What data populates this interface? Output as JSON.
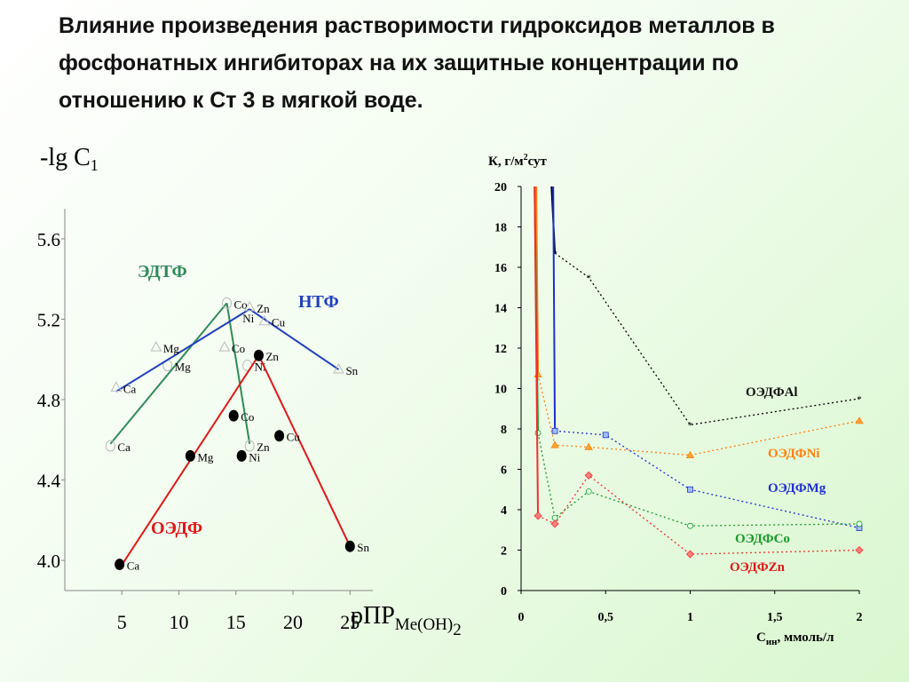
{
  "title": "Влияние произведения растворимости гидроксидов металлов в фосфонатных ингибиторах на их защитные концентрации по отношению к Ст 3 в мягкой воде.",
  "chart_data": [
    {
      "type": "scatter",
      "ylabel_main": "-lg C",
      "ylabel_sub": "1",
      "xlabel_main": "рПР",
      "xlabel_sub": "Me(OH)",
      "xlabel_sub2": "2",
      "xlim": [
        0,
        27
      ],
      "ylim": [
        3.85,
        5.75
      ],
      "x_ticks": [
        {
          "v": 5,
          "label": "5"
        },
        {
          "v": 10,
          "label": "10"
        },
        {
          "v": 15,
          "label": "15"
        },
        {
          "v": 20,
          "label": "20"
        },
        {
          "v": 25,
          "label": "25"
        }
      ],
      "y_ticks": [
        {
          "v": 4.0,
          "label": "4.0"
        },
        {
          "v": 4.4,
          "label": "4.4"
        },
        {
          "v": 4.8,
          "label": "4.8"
        },
        {
          "v": 5.2,
          "label": "5.2"
        },
        {
          "v": 5.6,
          "label": "5.6"
        }
      ],
      "series": [
        {
          "name": "ЭДТФ",
          "color": "#2e8b57",
          "marker": "open-circle",
          "points": [
            {
              "x": 4.0,
              "y": 4.57,
              "label": "Ca"
            },
            {
              "x": 9.0,
              "y": 4.97,
              "label": "Mg"
            },
            {
              "x": 14.2,
              "y": 5.28,
              "label": "Co"
            },
            {
              "x": 16.0,
              "y": 4.97,
              "label": "Ni"
            },
            {
              "x": 16.2,
              "y": 4.57,
              "label": "Zn"
            }
          ],
          "lines": [
            {
              "from": [
                4.0,
                4.58
              ],
              "to": [
                14.2,
                5.28
              ]
            },
            {
              "from": [
                14.2,
                5.28
              ],
              "to": [
                16.2,
                4.58
              ]
            }
          ]
        },
        {
          "name": "НТФ",
          "color": "#1f3fbf",
          "marker": "open-triangle",
          "points": [
            {
              "x": 4.5,
              "y": 4.86,
              "label": "Ca"
            },
            {
              "x": 8.0,
              "y": 5.06,
              "label": "Mg"
            },
            {
              "x": 14.0,
              "y": 5.06,
              "label": "Co"
            },
            {
              "x": 16.2,
              "y": 5.26,
              "label": "Zn"
            },
            {
              "x": 17.5,
              "y": 5.19,
              "label": "Cu"
            },
            {
              "x": 24.0,
              "y": 4.95,
              "label": "Sn"
            }
          ],
          "extra_labels": [
            {
              "x": 16.2,
              "y": 5.21,
              "label": "Ni"
            }
          ],
          "lines": [
            {
              "from": [
                4.5,
                4.84
              ],
              "to": [
                16.2,
                5.25
              ]
            },
            {
              "from": [
                16.2,
                5.25
              ],
              "to": [
                24.0,
                4.95
              ]
            }
          ]
        },
        {
          "name": "ОЭДФ",
          "color": "#e01818",
          "marker": "filled-circle",
          "points": [
            {
              "x": 4.8,
              "y": 3.98,
              "label": "Ca"
            },
            {
              "x": 11.0,
              "y": 4.52,
              "label": "Mg"
            },
            {
              "x": 14.8,
              "y": 4.72,
              "label": "Co"
            },
            {
              "x": 15.5,
              "y": 4.52,
              "label": "Ni"
            },
            {
              "x": 17.0,
              "y": 5.02,
              "label": "Zn"
            },
            {
              "x": 18.8,
              "y": 4.62,
              "label": "Cu"
            },
            {
              "x": 25.0,
              "y": 4.07,
              "label": "Sn"
            }
          ],
          "lines": [
            {
              "from": [
                4.8,
                3.96
              ],
              "to": [
                17.0,
                5.02
              ]
            },
            {
              "from": [
                17.0,
                5.02
              ],
              "to": [
                25.0,
                4.07
              ]
            }
          ]
        }
      ]
    },
    {
      "type": "line",
      "ylabel_main": "К, г/м",
      "ylabel_sup": "2",
      "ylabel_tail": "сут",
      "xlabel_main": "С",
      "xlabel_sub": "ин",
      "xlabel_tail": ", ммоль/л",
      "xlim": [
        0,
        2
      ],
      "ylim": [
        0,
        20
      ],
      "x_ticks": [
        {
          "v": 0,
          "label": "0"
        },
        {
          "v": 0.5,
          "label": "0,5"
        },
        {
          "v": 1,
          "label": "1"
        },
        {
          "v": 1.5,
          "label": "1,5"
        },
        {
          "v": 2,
          "label": "2"
        }
      ],
      "y_ticks": [
        {
          "v": 0,
          "label": "0"
        },
        {
          "v": 2,
          "label": "2"
        },
        {
          "v": 4,
          "label": "4"
        },
        {
          "v": 6,
          "label": "6"
        },
        {
          "v": 8,
          "label": "8"
        },
        {
          "v": 10,
          "label": "10"
        },
        {
          "v": 12,
          "label": "12"
        },
        {
          "v": 14,
          "label": "14"
        },
        {
          "v": 16,
          "label": "16"
        },
        {
          "v": 18,
          "label": "18"
        },
        {
          "v": 20,
          "label": "20"
        }
      ],
      "series": [
        {
          "name": "ОЭДФAl",
          "color": "#000000",
          "marker": "star",
          "start": [
            0.18,
            20
          ],
          "x": [
            0.2,
            0.4,
            1.0,
            2.0
          ],
          "y": [
            16.7,
            15.5,
            8.2,
            9.5
          ]
        },
        {
          "name": "ОЭДФNi",
          "color": "#ff7f0e",
          "marker": "triangle",
          "start": [
            0.09,
            20
          ],
          "x": [
            0.1,
            0.2,
            0.4,
            1.0,
            2.0
          ],
          "y": [
            10.7,
            7.2,
            7.1,
            6.7,
            8.4
          ]
        },
        {
          "name": "ОЭДФMg",
          "color": "#1f2fd0",
          "marker": "square",
          "start": [
            0.19,
            20
          ],
          "x": [
            0.2,
            0.5,
            1.0,
            2.0
          ],
          "y": [
            7.9,
            7.7,
            5.0,
            3.1
          ]
        },
        {
          "name": "ОЭДФCo",
          "color": "#1a9a2a",
          "marker": "circle",
          "start": [
            0.08,
            20
          ],
          "x": [
            0.1,
            0.2,
            0.4,
            1.0,
            2.0
          ],
          "y": [
            7.8,
            3.6,
            4.9,
            3.2,
            3.3
          ]
        },
        {
          "name": "ОЭДФZn",
          "color": "#f03030",
          "marker": "diamond",
          "start": [
            0.08,
            20
          ],
          "x": [
            0.1,
            0.2,
            0.4,
            1.0,
            2.0
          ],
          "y": [
            3.7,
            3.3,
            5.7,
            1.8,
            2.0
          ]
        }
      ],
      "legend": [
        {
          "name": "ОЭДФAl",
          "color": "#111111"
        },
        {
          "name": "ОЭДФNi",
          "color": "#ff7f0e"
        },
        {
          "name": "ОЭДФMg",
          "color": "#1f2fd0"
        },
        {
          "name": "ОЭДФCo",
          "color": "#1a9a2a"
        },
        {
          "name": "ОЭДФZn",
          "color": "#e01818"
        }
      ]
    }
  ]
}
